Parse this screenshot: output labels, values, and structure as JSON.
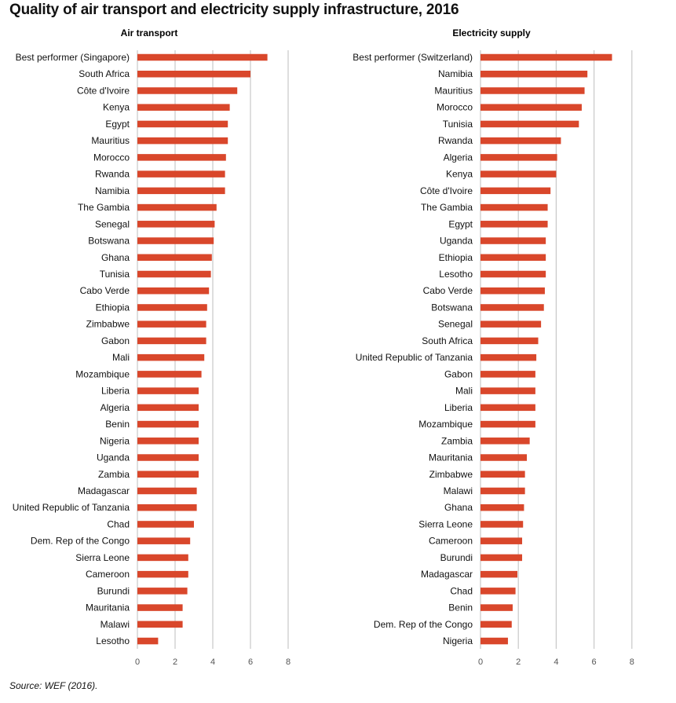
{
  "title": "Quality of air transport and electricity supply infrastructure, 2016",
  "source": "Source: WEF (2016).",
  "colors": {
    "bar": "#d9472b",
    "grid": "#c8c8c8"
  },
  "chart_data": [
    {
      "type": "bar",
      "orientation": "horizontal",
      "title": "Air transport",
      "xlabel": "",
      "ylabel": "",
      "xlim": [
        0,
        8
      ],
      "ticks": [
        0,
        2,
        4,
        6,
        8
      ],
      "grid": true,
      "categories": [
        "Best performer (Singapore)",
        "South Africa",
        "Côte d'Ivoire",
        "Kenya",
        "Egypt",
        "Mauritius",
        "Morocco",
        "Rwanda",
        "Namibia",
        "The Gambia",
        "Senegal",
        "Botswana",
        "Ghana",
        "Tunisia",
        "Cabo Verde",
        "Ethiopia",
        "Zimbabwe",
        "Gabon",
        "Mali",
        "Mozambique",
        "Liberia",
        "Algeria",
        "Benin",
        "Nigeria",
        "Uganda",
        "Zambia",
        "Madagascar",
        "United Republic of Tanzania",
        "Chad",
        "Dem. Rep of the Congo",
        "Sierra Leone",
        "Cameroon",
        "Burundi",
        "Mauritania",
        "Malawi",
        "Lesotho"
      ],
      "values": [
        6.9,
        6.0,
        5.3,
        4.9,
        4.8,
        4.8,
        4.7,
        4.65,
        4.65,
        4.2,
        4.1,
        4.05,
        3.95,
        3.9,
        3.8,
        3.7,
        3.65,
        3.65,
        3.55,
        3.4,
        3.25,
        3.25,
        3.25,
        3.25,
        3.25,
        3.25,
        3.15,
        3.15,
        3.0,
        2.8,
        2.7,
        2.7,
        2.65,
        2.4,
        2.4,
        1.1
      ]
    },
    {
      "type": "bar",
      "orientation": "horizontal",
      "title": "Electricity supply",
      "xlabel": "",
      "ylabel": "",
      "xlim": [
        0,
        8
      ],
      "ticks": [
        0,
        2,
        4,
        6,
        8
      ],
      "grid": true,
      "categories": [
        "Best performer (Switzerland)",
        "Namibia",
        "Mauritius",
        "Morocco",
        "Tunisia",
        "Rwanda",
        "Algeria",
        "Kenya",
        "Côte d'Ivoire",
        "The Gambia",
        "Egypt",
        "Uganda",
        "Ethiopia",
        "Lesotho",
        "Cabo Verde",
        "Botswana",
        "Senegal",
        "South Africa",
        "United Republic of Tanzania",
        "Gabon",
        "Mali",
        "Liberia",
        "Mozambique",
        "Zambia",
        "Mauritania",
        "Zimbabwe",
        "Malawi",
        "Ghana",
        "Sierra Leone",
        "Cameroon",
        "Burundi",
        "Madagascar",
        "Chad",
        "Benin",
        "Dem. Rep of the Congo",
        "Nigeria"
      ],
      "values": [
        6.95,
        5.65,
        5.5,
        5.35,
        5.2,
        4.25,
        4.05,
        4.0,
        3.7,
        3.55,
        3.55,
        3.45,
        3.45,
        3.45,
        3.4,
        3.35,
        3.2,
        3.05,
        2.95,
        2.9,
        2.9,
        2.9,
        2.9,
        2.6,
        2.45,
        2.35,
        2.35,
        2.3,
        2.25,
        2.2,
        2.2,
        1.95,
        1.85,
        1.7,
        1.65,
        1.45
      ]
    }
  ]
}
